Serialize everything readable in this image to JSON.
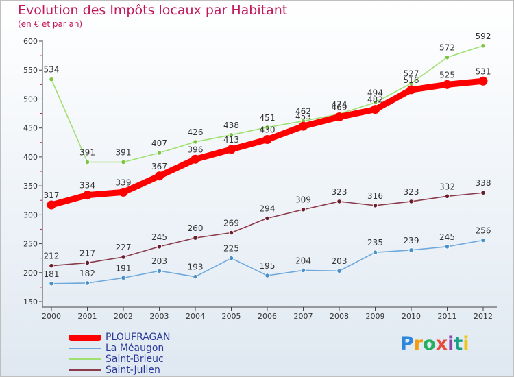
{
  "header": {
    "title": "Evolution des Impôts locaux par Habitant",
    "subtitle": "(en € et par an)"
  },
  "logo": {
    "letters": [
      {
        "ch": "P",
        "color": "#2e86de"
      },
      {
        "ch": "r",
        "color": "#f39c12"
      },
      {
        "ch": "o",
        "color": "#27ae60"
      },
      {
        "ch": "x",
        "color": "#e74c3c"
      },
      {
        "ch": "i",
        "color": "#8e44ad"
      },
      {
        "ch": "t",
        "color": "#16a085"
      },
      {
        "ch": "i",
        "color": "#f1c40f"
      }
    ]
  },
  "chart_data": {
    "type": "line",
    "title": "Evolution des Impôts locaux par Habitant",
    "subtitle": "(en € et par an)",
    "x": [
      "2000",
      "2001",
      "2002",
      "2003",
      "2004",
      "2005",
      "2006",
      "2007",
      "2008",
      "2009",
      "2010",
      "2011",
      "2012"
    ],
    "ylim": [
      150,
      600
    ],
    "yticks": [
      "150",
      "200",
      "250",
      "300",
      "350",
      "400",
      "450",
      "500",
      "550",
      "600"
    ],
    "grid": false,
    "legend_position": "bottom-left",
    "series": [
      {
        "name": "PLOUFRAGAN",
        "color": "#ff0000",
        "thick": true,
        "values": [
          317,
          334,
          339,
          367,
          396,
          413,
          430,
          453,
          469,
          482,
          516,
          525,
          531
        ],
        "labels": [
          "317",
          "334",
          "339",
          "367",
          "396",
          "413",
          "430",
          "453",
          "469",
          "482",
          "516",
          "525",
          "531"
        ]
      },
      {
        "name": "La Méaugon",
        "color": "#6fa8dc",
        "marker": "#4a90c8",
        "values": [
          181,
          182,
          191,
          203,
          193,
          225,
          195,
          204,
          203,
          235,
          239,
          245,
          256
        ],
        "labels": [
          "181",
          "182",
          "191",
          "203",
          "193",
          "225",
          "195",
          "204",
          "203",
          "235",
          "239",
          "245",
          "256"
        ]
      },
      {
        "name": "Saint-Brieuc",
        "color": "#9fe070",
        "marker": "#7cc444",
        "values": [
          534,
          391,
          391,
          407,
          426,
          438,
          451,
          462,
          474,
          494,
          527,
          572,
          592
        ],
        "labels": [
          "534",
          "391",
          "391",
          "407",
          "426",
          "438",
          "451",
          "462",
          "474",
          "494",
          "527",
          "572",
          "592"
        ]
      },
      {
        "name": "Saint-Julien",
        "color": "#8b3a4a",
        "marker": "#6b1f2e",
        "values": [
          212,
          217,
          227,
          245,
          260,
          269,
          294,
          309,
          323,
          316,
          323,
          332,
          338
        ],
        "labels": [
          "212",
          "217",
          "227",
          "245",
          "260",
          "269",
          "294",
          "309",
          "323",
          "316",
          "323",
          "332",
          "338"
        ]
      }
    ]
  }
}
